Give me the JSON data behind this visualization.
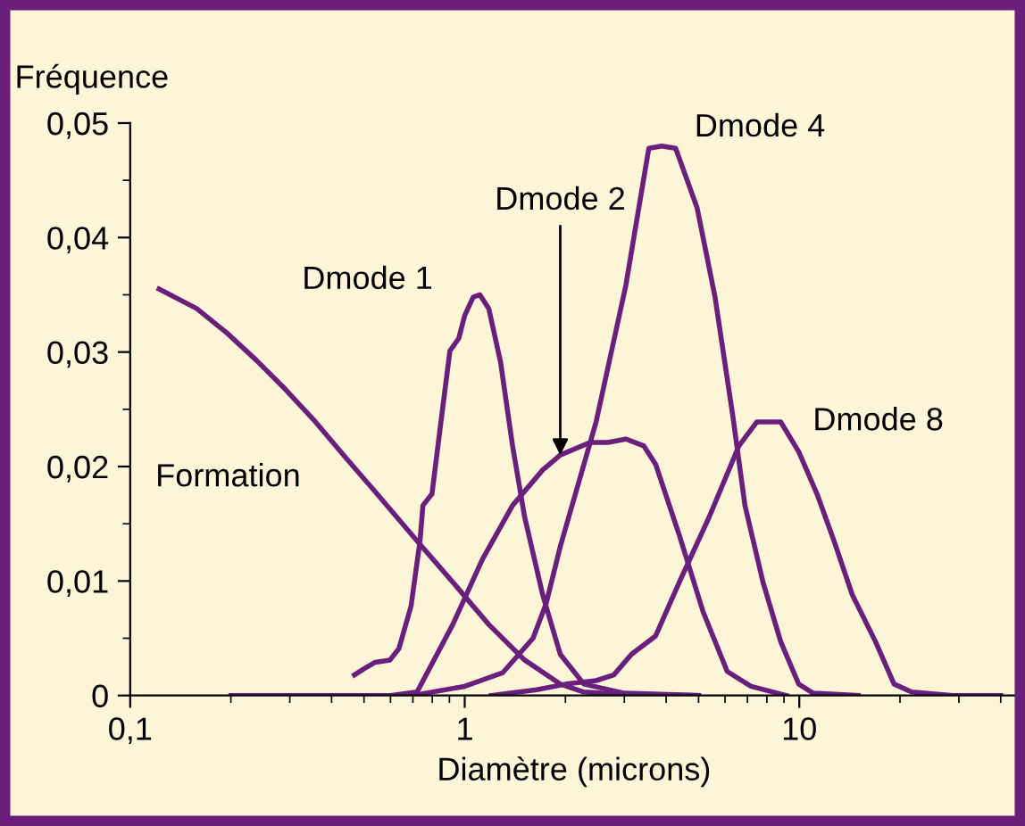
{
  "chart_data": {
    "type": "line",
    "ylabel": "Fréquence",
    "xlabel": "Diamètre (microns)",
    "log": "x",
    "xlim": [
      0.1,
      45
    ],
    "xticks": [
      {
        "value": 0.1,
        "label": "0,1"
      },
      1,
      10
    ],
    "ylim": [
      0,
      0.05
    ],
    "yticks": [
      0,
      {
        "value": 0.01,
        "label": "0,01"
      },
      {
        "value": 0.02,
        "label": "0,02"
      },
      {
        "value": 0.03,
        "label": "0,03"
      },
      {
        "value": 0.04,
        "label": "0,04"
      },
      {
        "value": 0.05,
        "label": "0,05"
      }
    ],
    "grid": false,
    "legend": false,
    "marker": "none",
    "line_style": "solid",
    "series": [
      {
        "name": "Formation",
        "color": "#6b1f7c",
        "x": [
          0.122,
          0.158,
          0.194,
          0.238,
          0.292,
          0.358,
          0.44,
          0.54,
          0.735,
          0.921,
          1.18,
          1.51,
          1.93,
          2.27,
          3,
          5
        ],
        "values": [
          0.0355,
          0.0338,
          0.0317,
          0.0293,
          0.0267,
          0.0239,
          0.0208,
          0.0178,
          0.0132,
          0.0099,
          0.0062,
          0.0031,
          0.001,
          0.0003,
          0.0001,
          0
        ]
      },
      {
        "name": "Dmode 1",
        "color": "#6b1f7c",
        "x": [
          0.468,
          0.498,
          0.54,
          0.598,
          0.636,
          0.691,
          0.735,
          0.75,
          0.798,
          0.849,
          0.903,
          0.96,
          1.0,
          1.06,
          1.11,
          1.18,
          1.28,
          1.39,
          1.51,
          1.71,
          1.93,
          2.27,
          3,
          5
        ],
        "values": [
          0.0018,
          0.0023,
          0.0029,
          0.0031,
          0.0041,
          0.0078,
          0.0135,
          0.0166,
          0.0176,
          0.0239,
          0.0301,
          0.0312,
          0.0332,
          0.0348,
          0.035,
          0.0338,
          0.0291,
          0.0218,
          0.0156,
          0.0088,
          0.0036,
          0.001,
          0.0002,
          0
        ]
      },
      {
        "name": "Dmode 2",
        "color": "#6b1f7c",
        "x": [
          0.6,
          0.72,
          0.921,
          1.13,
          1.39,
          1.71,
          1.93,
          2.37,
          2.68,
          3.03,
          3.43,
          3.72,
          4.38,
          5.16,
          6.09,
          7.17,
          9.15
        ],
        "values": [
          0,
          0.0003,
          0.0062,
          0.0119,
          0.0166,
          0.0197,
          0.021,
          0.0221,
          0.0221,
          0.0224,
          0.0218,
          0.0202,
          0.014,
          0.0073,
          0.0021,
          0.0008,
          0
        ]
      },
      {
        "name": "Dmode 4",
        "color": "#6b1f7c",
        "x": [
          0.2,
          0.7,
          1.0,
          1.3,
          1.6,
          1.75,
          1.93,
          2.47,
          3.03,
          3.55,
          3.88,
          4.27,
          4.95,
          5.6,
          6.33,
          6.88,
          7.79,
          8.8,
          9.96,
          11,
          15
        ],
        "values": [
          0,
          0,
          0.0008,
          0.002,
          0.005,
          0.008,
          0.013,
          0.0239,
          0.0358,
          0.0478,
          0.048,
          0.0478,
          0.0426,
          0.0348,
          0.0244,
          0.0166,
          0.0099,
          0.0047,
          0.001,
          0.0002,
          0
        ]
      },
      {
        "name": "Dmode 8",
        "color": "#6b1f7c",
        "x": [
          1.2,
          1.64,
          2.01,
          2.47,
          2.79,
          3.15,
          3.72,
          4.38,
          5.38,
          6.6,
          7.47,
          8.8,
          9.96,
          11.3,
          12.7,
          14.4,
          16.9,
          19.2,
          21.7,
          28.8,
          40
        ],
        "values": [
          0,
          0.0005,
          0.001,
          0.0013,
          0.0018,
          0.0036,
          0.0052,
          0.0099,
          0.0156,
          0.0218,
          0.0239,
          0.0239,
          0.0213,
          0.0176,
          0.0135,
          0.0088,
          0.0047,
          0.001,
          0.0003,
          0,
          0
        ]
      }
    ]
  }
}
